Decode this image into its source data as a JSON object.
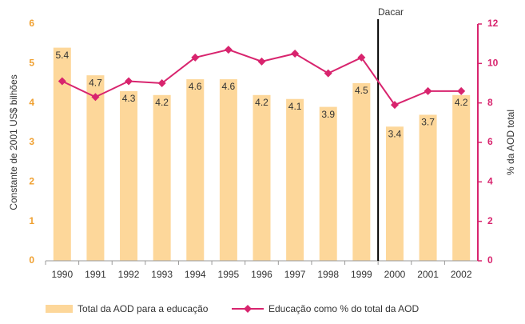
{
  "chart_data": {
    "type": "bar_line",
    "categories": [
      "1990",
      "1991",
      "1992",
      "1993",
      "1994",
      "1995",
      "1996",
      "1997",
      "1998",
      "1999",
      "2000",
      "2001",
      "2002"
    ],
    "series": [
      {
        "name": "Total  da AOD para a educação",
        "color": "#fdd79a",
        "type": "bar",
        "values": [
          5.4,
          4.7,
          4.3,
          4.2,
          4.6,
          4.6,
          4.2,
          4.1,
          3.9,
          4.5,
          3.4,
          3.7,
          4.2
        ]
      },
      {
        "name": "Educação como % do total da AOD",
        "color": "#d8246e",
        "type": "line",
        "axis": "y2",
        "values": [
          9.1,
          8.3,
          9.1,
          9.0,
          10.3,
          10.7,
          10.1,
          10.5,
          9.5,
          10.3,
          7.9,
          8.6,
          8.6
        ]
      }
    ],
    "ylabel": "Constante de 2001 US$ bilhões",
    "y2label": "% da AOD total",
    "ylim": [
      0,
      6
    ],
    "yticks": [
      0,
      1,
      2,
      3,
      4,
      5,
      6
    ],
    "y2lim": [
      0,
      12
    ],
    "y2ticks": [
      0,
      2,
      4,
      6,
      8,
      10,
      12
    ],
    "annotation": "Dacar",
    "legend": "bottom"
  }
}
